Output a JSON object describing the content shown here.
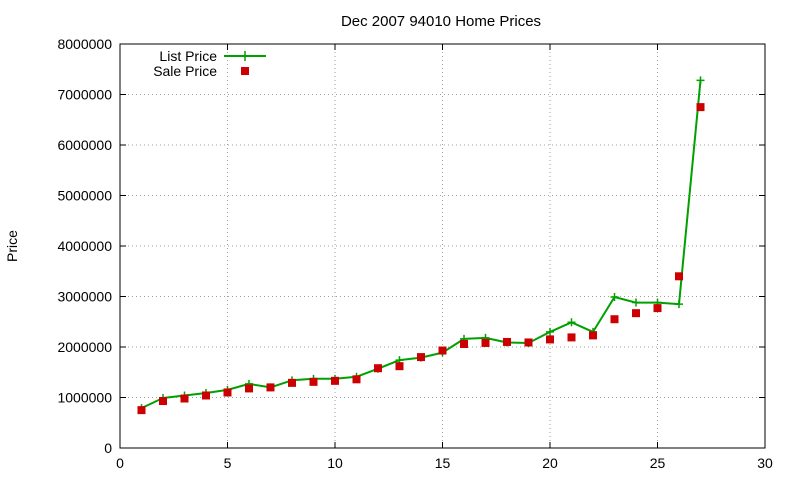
{
  "chart_data": {
    "type": "line",
    "title": "Dec 2007 94010 Home Prices",
    "xlabel": "",
    "ylabel": "Price",
    "xlim": [
      0,
      30
    ],
    "ylim": [
      0,
      8000000
    ],
    "xticks": [
      0,
      5,
      10,
      15,
      20,
      25,
      30
    ],
    "yticks": [
      0,
      1000000,
      2000000,
      3000000,
      4000000,
      5000000,
      6000000,
      7000000,
      8000000
    ],
    "xtick_labels": [
      "0",
      "5",
      "10",
      "15",
      "20",
      "25",
      "30"
    ],
    "ytick_labels": [
      "0",
      "1000000",
      "2000000",
      "3000000",
      "4000000",
      "5000000",
      "6000000",
      "7000000",
      "8000000"
    ],
    "grid": true,
    "legend_position": "top-left",
    "x": [
      1,
      2,
      3,
      4,
      5,
      6,
      7,
      8,
      9,
      10,
      11,
      12,
      13,
      14,
      15,
      16,
      17,
      18,
      19,
      20,
      21,
      22,
      23,
      24,
      25,
      26,
      27
    ],
    "series": [
      {
        "name": "List Price",
        "style": "line-with-plus-markers",
        "color": "#00a000",
        "values": [
          790000,
          990000,
          1040000,
          1090000,
          1150000,
          1270000,
          1200000,
          1340000,
          1370000,
          1370000,
          1410000,
          1570000,
          1740000,
          1790000,
          1890000,
          2160000,
          2180000,
          2090000,
          2080000,
          2300000,
          2490000,
          2300000,
          2990000,
          2880000,
          2880000,
          2850000,
          7280000
        ]
      },
      {
        "name": "Sale Price",
        "style": "square-markers",
        "color": "#cc0000",
        "values": [
          750000,
          930000,
          980000,
          1040000,
          1100000,
          1180000,
          1200000,
          1290000,
          1310000,
          1330000,
          1360000,
          1580000,
          1620000,
          1800000,
          1930000,
          2060000,
          2080000,
          2100000,
          2090000,
          2150000,
          2190000,
          2230000,
          2550000,
          2670000,
          2770000,
          3400000,
          6750000
        ]
      }
    ]
  }
}
